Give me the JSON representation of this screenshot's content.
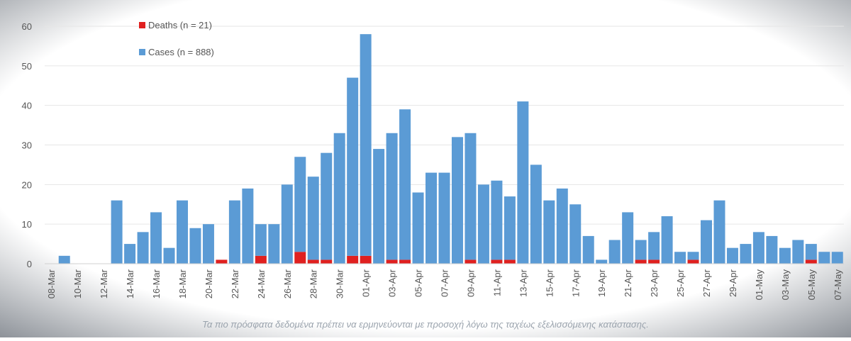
{
  "chart_data": {
    "type": "stacked_bar",
    "caption": "Τα πιο πρόσφατα δεδομένα πρέπει να ερμηνεύονται με προσοχή λόγω της ταχέως εξελισσόμενης κατάστασης.",
    "categories": [
      "08-Mar",
      null,
      "10-Mar",
      null,
      "12-Mar",
      null,
      "14-Mar",
      null,
      "16-Mar",
      null,
      "18-Mar",
      null,
      "20-Mar",
      null,
      "22-Mar",
      null,
      "24-Mar",
      null,
      "26-Mar",
      null,
      "28-Mar",
      null,
      "30-Mar",
      null,
      "01-Apr",
      null,
      "03-Apr",
      null,
      "05-Apr",
      null,
      "07-Apr",
      null,
      "09-Apr",
      null,
      "11-Apr",
      null,
      "13-Apr",
      null,
      "15-Apr",
      null,
      "17-Apr",
      null,
      "19-Apr",
      null,
      "21-Apr",
      null,
      "23-Apr",
      null,
      "25-Apr",
      null,
      "27-Apr",
      null,
      "29-Apr",
      null,
      "01-May",
      null,
      "03-May",
      null,
      "05-May",
      null,
      "07-May"
    ],
    "series": [
      {
        "name": "Deaths (n = 21)",
        "color": "#e0201f",
        "values": [
          0,
          0,
          0,
          0,
          0,
          0,
          0,
          0,
          0,
          0,
          0,
          0,
          0,
          1,
          0,
          0,
          2,
          0,
          0,
          3,
          1,
          1,
          0,
          2,
          2,
          0,
          1,
          1,
          0,
          0,
          0,
          0,
          1,
          0,
          1,
          1,
          0,
          0,
          0,
          0,
          0,
          0,
          0,
          0,
          0,
          1,
          1,
          0,
          0,
          1,
          0,
          0,
          0,
          0,
          0,
          0,
          0,
          0,
          1,
          0,
          0
        ]
      },
      {
        "name": "Cases (n = 888)",
        "color": "#5b9bd5",
        "values": [
          0,
          2,
          0,
          0,
          0,
          16,
          5,
          8,
          13,
          4,
          16,
          9,
          10,
          0,
          16,
          19,
          8,
          10,
          20,
          24,
          21,
          27,
          33,
          45,
          56,
          29,
          32,
          38,
          18,
          23,
          23,
          32,
          32,
          20,
          20,
          16,
          41,
          25,
          16,
          19,
          15,
          7,
          1,
          6,
          13,
          5,
          7,
          12,
          3,
          2,
          11,
          16,
          4,
          5,
          8,
          7,
          4,
          6,
          4,
          3,
          3
        ]
      }
    ],
    "ylim": [
      0,
      60
    ],
    "yticks": [
      0,
      10,
      20,
      30,
      40,
      50,
      60
    ],
    "grid": true
  }
}
